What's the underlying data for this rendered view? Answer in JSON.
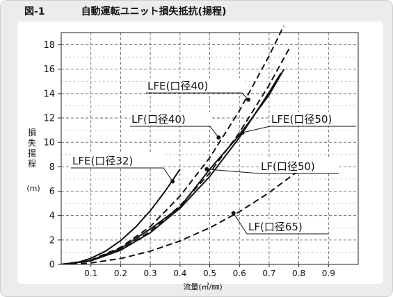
{
  "figure": {
    "number": "図-1",
    "title": "自動運転ユニット損失抵抗(揚程)"
  },
  "chart_data": {
    "type": "line",
    "title": "自動運転ユニット損失抵抗(揚程)",
    "xlabel": "流量(㎥/㎜)",
    "ylabel_chars": [
      "損",
      "失",
      "揚",
      "程"
    ],
    "ylabel_unit": "(m)",
    "xlim": [
      0,
      1.0
    ],
    "ylim": [
      0,
      19
    ],
    "x_ticks": [
      "0.1",
      "0.2",
      "0.3",
      "0.4",
      "0.5",
      "0.6",
      "0.7",
      "0.8",
      "0.9"
    ],
    "x_tick_values": [
      0.1,
      0.2,
      0.3,
      0.4,
      0.5,
      0.6,
      0.7,
      0.8,
      0.9
    ],
    "y_ticks": [
      "0",
      "2",
      "4",
      "6",
      "8",
      "10",
      "12",
      "14",
      "16",
      "18"
    ],
    "y_tick_values": [
      0,
      2,
      4,
      6,
      8,
      10,
      12,
      14,
      16,
      18
    ],
    "grid": true,
    "series": [
      {
        "name": "LFE(口径32)",
        "style": "solid",
        "x": [
          0.0,
          0.05,
          0.1,
          0.15,
          0.2,
          0.25,
          0.3,
          0.35,
          0.4
        ],
        "y": [
          0.0,
          0.12,
          0.5,
          1.1,
          1.95,
          3.05,
          4.4,
          6.0,
          7.8
        ],
        "marker": [
          0.375,
          6.8
        ]
      },
      {
        "name": "LFE(口径40)",
        "style": "dashed",
        "x": [
          0.0,
          0.1,
          0.2,
          0.3,
          0.4,
          0.5,
          0.6,
          0.7,
          0.75
        ],
        "y": [
          0.0,
          0.35,
          1.4,
          3.1,
          5.6,
          8.75,
          12.6,
          17.1,
          19.6
        ],
        "marker": [
          0.63,
          13.5
        ]
      },
      {
        "name": "LF(口径40)",
        "style": "dashed",
        "x": [
          0.0,
          0.1,
          0.2,
          0.3,
          0.4,
          0.5,
          0.6,
          0.7,
          0.77
        ],
        "y": [
          0.0,
          0.3,
          1.2,
          2.7,
          4.8,
          7.5,
          10.8,
          14.7,
          17.8
        ],
        "marker": [
          0.53,
          10.4
        ]
      },
      {
        "name": "LFE(口径50)",
        "style": "solid",
        "x": [
          0.0,
          0.1,
          0.2,
          0.3,
          0.4,
          0.5,
          0.6,
          0.7,
          0.74
        ],
        "y": [
          0.0,
          0.29,
          1.16,
          2.6,
          4.6,
          7.2,
          10.4,
          14.1,
          15.7
        ],
        "marker": [
          0.61,
          10.8
        ]
      },
      {
        "name": "LF(口径50)",
        "style": "solid",
        "x": [
          0.0,
          0.1,
          0.2,
          0.3,
          0.4,
          0.5,
          0.6,
          0.7,
          0.75
        ],
        "y": [
          0.0,
          0.32,
          1.3,
          2.9,
          4.7,
          7.8,
          10.6,
          13.9,
          16.0
        ],
        "marker": [
          0.49,
          7.8
        ]
      },
      {
        "name": "LF(口径65)",
        "style": "dashed",
        "x": [
          0.0,
          0.1,
          0.2,
          0.3,
          0.4,
          0.5,
          0.6,
          0.7,
          0.8
        ],
        "y": [
          0.0,
          0.12,
          0.48,
          1.08,
          1.92,
          3.0,
          4.32,
          5.88,
          7.7
        ],
        "marker": [
          0.58,
          4.2
        ]
      }
    ]
  }
}
